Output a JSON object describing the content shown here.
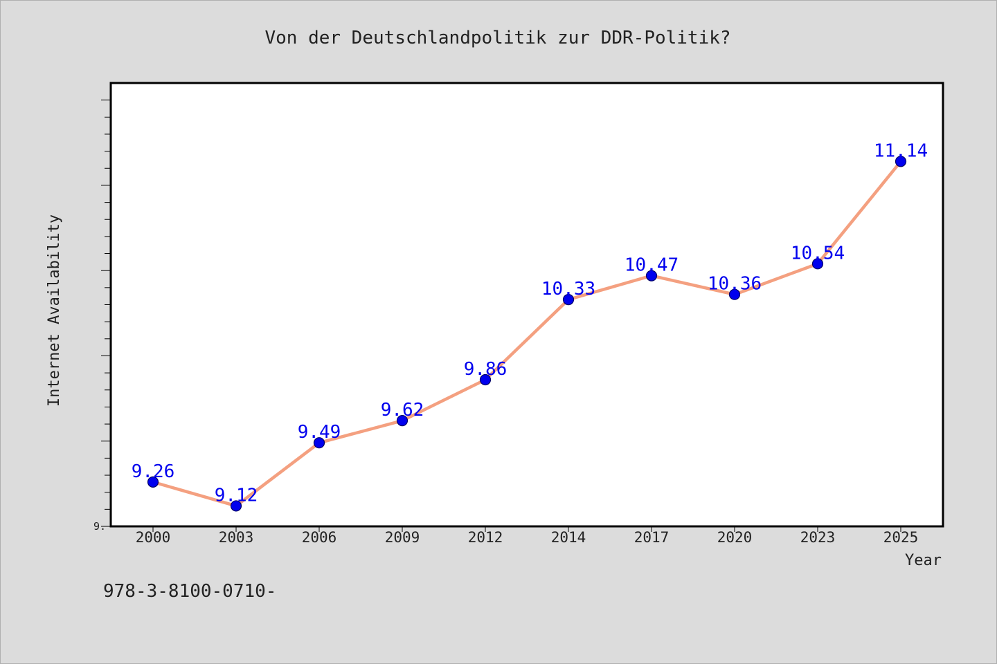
{
  "chart_data": {
    "type": "line",
    "title": "Von der Deutschlandpolitik zur DDR-Politik?",
    "xlabel": "Year",
    "ylabel": "Internet Availability",
    "categories": [
      "2000",
      "2003",
      "2006",
      "2009",
      "2012",
      "2014",
      "2017",
      "2020",
      "2023",
      "2025"
    ],
    "series": [
      {
        "values": [
          9.26,
          9.12,
          9.49,
          9.62,
          9.86,
          10.33,
          10.47,
          10.36,
          10.54,
          11.14
        ],
        "labels": [
          "9.26",
          "9.12",
          "9.49",
          "9.62",
          "9.86",
          "10.33",
          "10.47",
          "10.36",
          "10.54",
          "11.14"
        ]
      }
    ],
    "ylim": [
      9.0,
      11.6
    ],
    "y_tick_label": "9.",
    "grid": false,
    "legend": "none",
    "colors": {
      "line": "#f4a080",
      "marker": "#0000ee",
      "marker_edge": "#000066",
      "data_label": "#0000ee",
      "plot_background": "#ffffff",
      "figure_background": "#dcdcdc"
    }
  },
  "footer": {
    "text": "978-3-8100-0710-"
  }
}
